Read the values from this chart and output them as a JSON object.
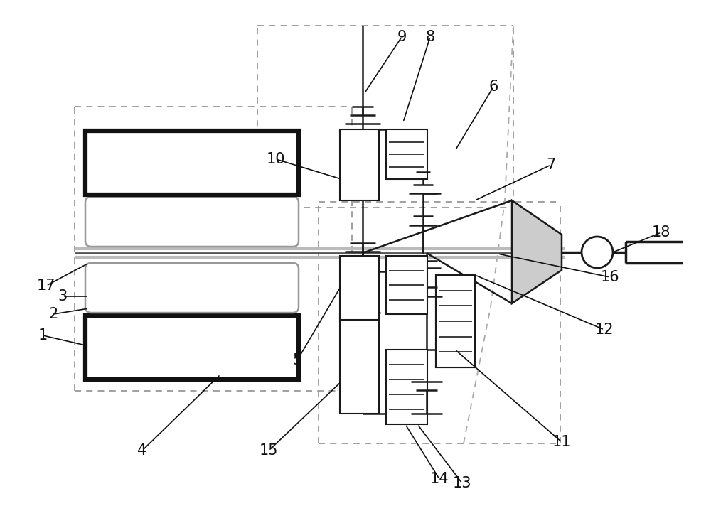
{
  "bg_color": "#ffffff",
  "lc": "#1a1a1a",
  "gray_line": "#888888",
  "light_gray": "#aaaaaa",
  "label_fontsize": 15
}
